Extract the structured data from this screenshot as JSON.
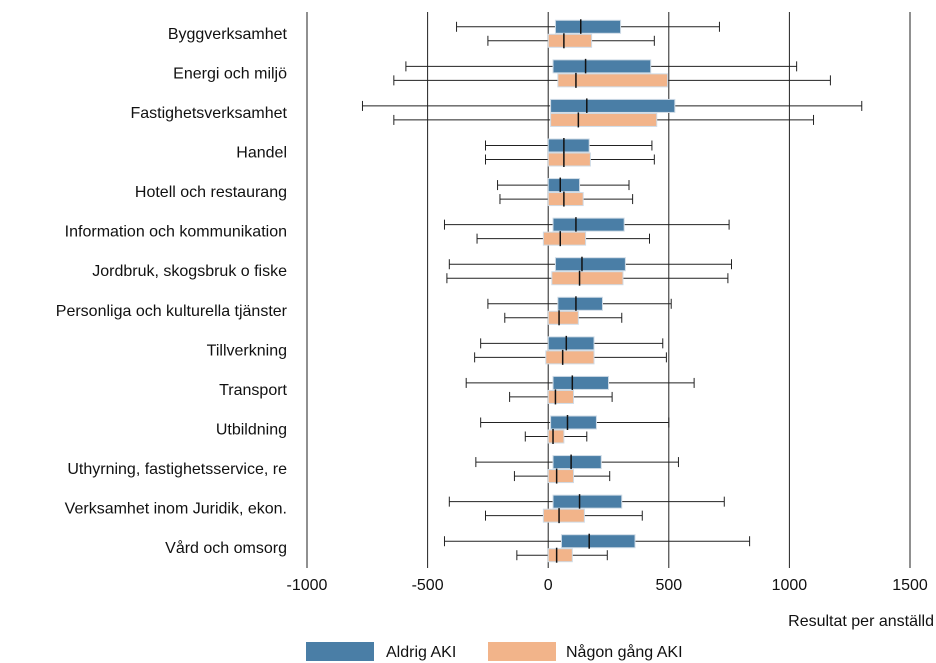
{
  "chart_data": {
    "type": "boxplot",
    "orientation": "horizontal",
    "xlabel": "Resultat per anställd",
    "xlim": [
      -1000,
      1500
    ],
    "xticks": [
      -1000,
      -500,
      0,
      500,
      1000,
      1500
    ],
    "grid": true,
    "legend_position": "bottom",
    "colors": {
      "Aldrig AKI": "#4a7ea6",
      "Någon gång AKI": "#f2b48a"
    },
    "categories": [
      "Byggverksamhet",
      "Energi och miljö",
      "Fastighetsverksamhet",
      "Handel",
      "Hotell och restaurang",
      "Information och kommunikation",
      "Jordbruk, skogsbruk o fiske",
      "Personliga och kulturella tjänster",
      "Tillverkning",
      "Transport",
      "Utbildning",
      "Uthyrning, fastighetsservice, re",
      "Verksamhet inom Juridik, ekon.",
      "Vård och omsorg"
    ],
    "series": [
      {
        "name": "Aldrig AKI",
        "boxes": [
          {
            "min": -380,
            "q1": 30,
            "median": 135,
            "q3": 300,
            "max": 710
          },
          {
            "min": -590,
            "q1": 20,
            "median": 155,
            "q3": 425,
            "max": 1030
          },
          {
            "min": -770,
            "q1": 10,
            "median": 160,
            "q3": 525,
            "max": 1300
          },
          {
            "min": -260,
            "q1": 0,
            "median": 65,
            "q3": 170,
            "max": 430
          },
          {
            "min": -210,
            "q1": 0,
            "median": 50,
            "q3": 130,
            "max": 335
          },
          {
            "min": -430,
            "q1": 20,
            "median": 115,
            "q3": 315,
            "max": 750
          },
          {
            "min": -410,
            "q1": 30,
            "median": 140,
            "q3": 320,
            "max": 760
          },
          {
            "min": -250,
            "q1": 40,
            "median": 115,
            "q3": 225,
            "max": 510
          },
          {
            "min": -280,
            "q1": 0,
            "median": 75,
            "q3": 190,
            "max": 475
          },
          {
            "min": -340,
            "q1": 20,
            "median": 100,
            "q3": 250,
            "max": 605
          },
          {
            "min": -280,
            "q1": 10,
            "median": 80,
            "q3": 200,
            "max": 500
          },
          {
            "min": -300,
            "q1": 20,
            "median": 95,
            "q3": 220,
            "max": 540
          },
          {
            "min": -410,
            "q1": 20,
            "median": 130,
            "q3": 305,
            "max": 730
          },
          {
            "min": -430,
            "q1": 55,
            "median": 170,
            "q3": 360,
            "max": 835
          }
        ]
      },
      {
        "name": "Någon gång AKI",
        "boxes": [
          {
            "min": -250,
            "q1": 0,
            "median": 65,
            "q3": 180,
            "max": 440
          },
          {
            "min": -640,
            "q1": 40,
            "median": 115,
            "q3": 495,
            "max": 1170
          },
          {
            "min": -640,
            "q1": 10,
            "median": 125,
            "q3": 450,
            "max": 1100
          },
          {
            "min": -260,
            "q1": 0,
            "median": 65,
            "q3": 175,
            "max": 440
          },
          {
            "min": -200,
            "q1": 0,
            "median": 65,
            "q3": 145,
            "max": 350
          },
          {
            "min": -295,
            "q1": -20,
            "median": 50,
            "q3": 155,
            "max": 420
          },
          {
            "min": -420,
            "q1": 15,
            "median": 130,
            "q3": 310,
            "max": 745
          },
          {
            "min": -180,
            "q1": 0,
            "median": 45,
            "q3": 125,
            "max": 305
          },
          {
            "min": -305,
            "q1": -10,
            "median": 60,
            "q3": 190,
            "max": 490
          },
          {
            "min": -160,
            "q1": 0,
            "median": 30,
            "q3": 105,
            "max": 265
          },
          {
            "min": -95,
            "q1": 0,
            "median": 20,
            "q3": 65,
            "max": 160
          },
          {
            "min": -140,
            "q1": 0,
            "median": 35,
            "q3": 105,
            "max": 255
          },
          {
            "min": -260,
            "q1": -20,
            "median": 45,
            "q3": 150,
            "max": 390
          },
          {
            "min": -130,
            "q1": 0,
            "median": 35,
            "q3": 100,
            "max": 245
          }
        ]
      }
    ]
  }
}
